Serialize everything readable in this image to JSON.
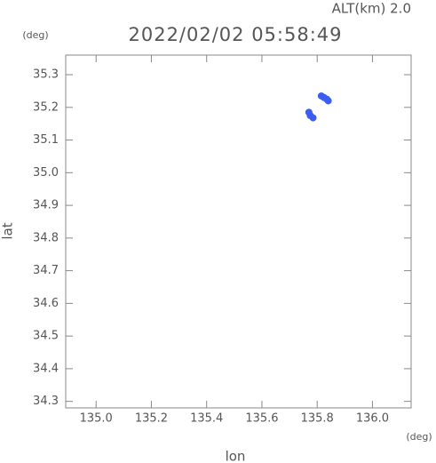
{
  "chart_data": {
    "type": "scatter",
    "title": "2022/02/02 05:58:49",
    "annotation": "ALT(km) 2.0",
    "xlabel": "lon",
    "ylabel": "lat",
    "xunit": "(deg)",
    "yunit": "(deg)",
    "color": "#3c5ef0",
    "x": [
      135.815,
      135.825,
      135.835,
      135.84,
      135.77,
      135.775,
      135.785
    ],
    "y": [
      35.235,
      35.23,
      35.225,
      35.22,
      35.185,
      35.175,
      35.168
    ],
    "xlim": [
      134.89,
      136.14
    ],
    "ylim": [
      34.28,
      35.36
    ],
    "xticks": [
      {
        "value": 135,
        "label": "135.0"
      },
      135.2,
      135.4,
      135.6,
      135.8,
      {
        "value": 136,
        "label": "136.0"
      }
    ],
    "yticks": [
      34.3,
      34.4,
      34.5,
      34.6,
      34.7,
      34.8,
      34.9,
      {
        "value": 35,
        "label": "35.0"
      },
      35.1,
      35.2,
      35.3
    ]
  }
}
